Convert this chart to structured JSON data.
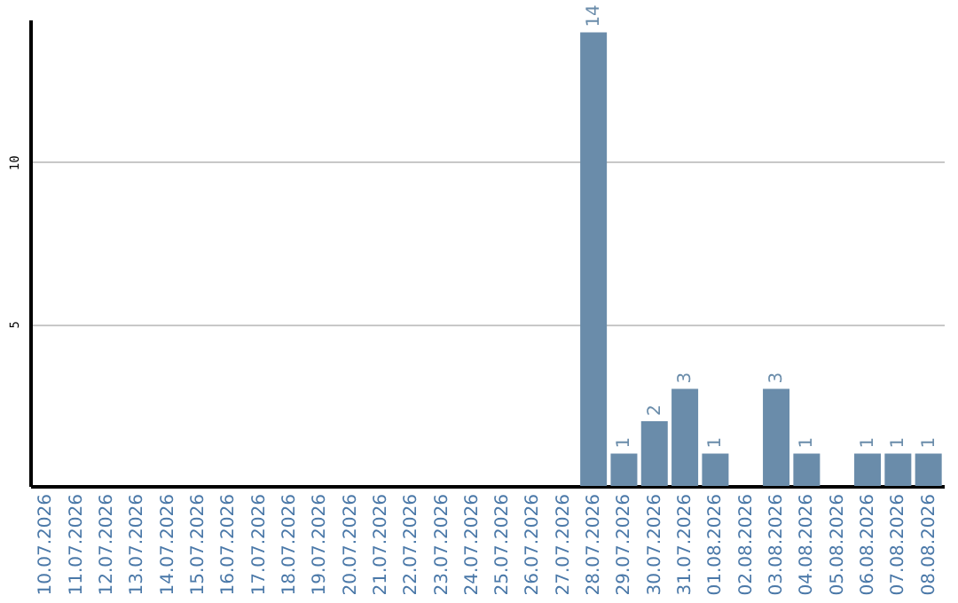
{
  "chart_data": {
    "type": "bar",
    "categories": [
      "10.07.2026",
      "11.07.2026",
      "12.07.2026",
      "13.07.2026",
      "14.07.2026",
      "15.07.2026",
      "16.07.2026",
      "17.07.2026",
      "18.07.2026",
      "19.07.2026",
      "20.07.2026",
      "21.07.2026",
      "22.07.2026",
      "23.07.2026",
      "24.07.2026",
      "25.07.2026",
      "26.07.2026",
      "27.07.2026",
      "28.07.2026",
      "29.07.2026",
      "30.07.2026",
      "31.07.2026",
      "01.08.2026",
      "02.08.2026",
      "03.08.2026",
      "04.08.2026",
      "05.08.2026",
      "06.08.2026",
      "07.08.2026",
      "08.08.2026"
    ],
    "values": [
      0,
      0,
      0,
      0,
      0,
      0,
      0,
      0,
      0,
      0,
      0,
      0,
      0,
      0,
      0,
      0,
      0,
      0,
      14,
      1,
      2,
      3,
      1,
      0,
      3,
      1,
      0,
      1,
      1,
      1
    ],
    "value_labels": [
      null,
      null,
      null,
      null,
      null,
      null,
      null,
      null,
      null,
      null,
      null,
      null,
      null,
      null,
      null,
      null,
      null,
      null,
      "14",
      "1",
      "2",
      "3",
      "1",
      null,
      "3",
      "1",
      null,
      "1",
      "1",
      "1"
    ],
    "color": "#6a8caa",
    "ylim": [
      0,
      14.4
    ],
    "yticks": [
      5,
      10
    ],
    "grid": "y"
  }
}
